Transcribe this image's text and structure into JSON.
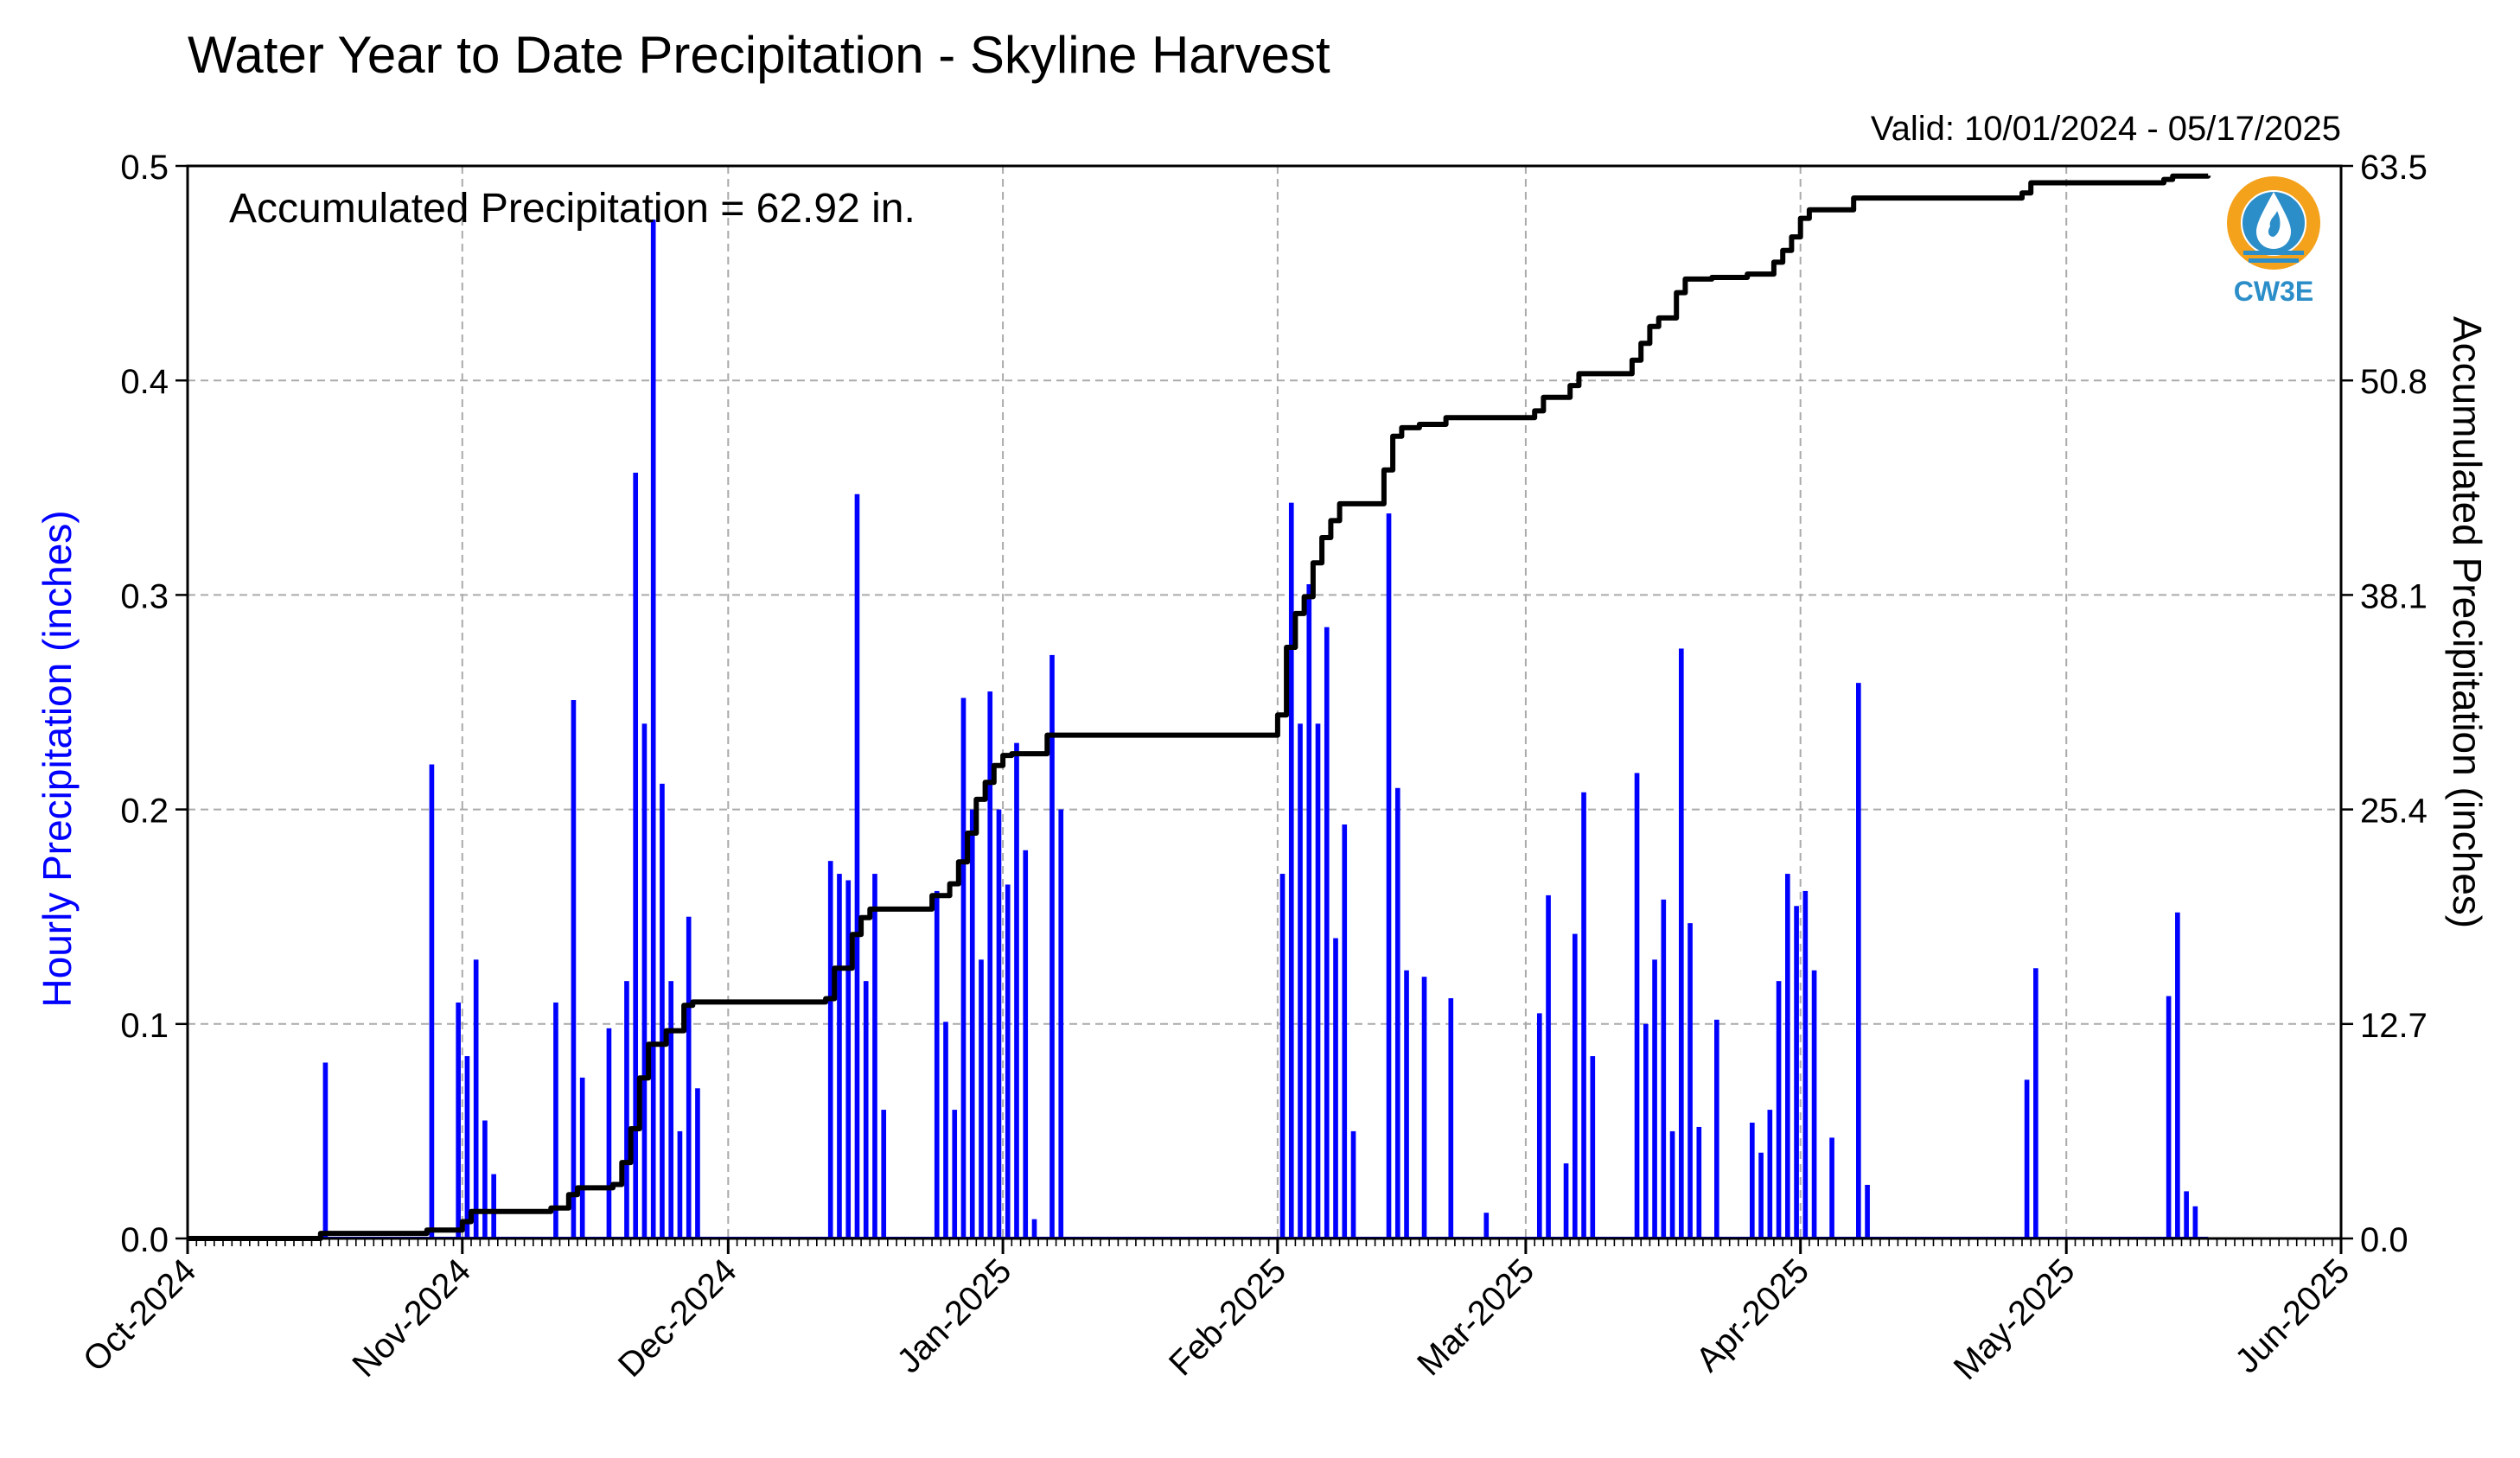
{
  "chart_data": {
    "type": "bar",
    "title": "Water Year to Date Precipitation - Skyline Harvest",
    "subtitle": "Valid: 10/01/2024 - 05/17/2025",
    "annotation": "Accumulated Precipitation = 62.92 in.",
    "logo_text": "CW3E",
    "xlabel": "",
    "ylabel": "Hourly Precipitation (inches)",
    "y2label": "Accumulated Precipitation (inches)",
    "x_axis": {
      "type": "date",
      "range": [
        "2024-10-01",
        "2025-06-01"
      ],
      "ticks": [
        {
          "date": "2024-10-01",
          "label": "Oct-2024"
        },
        {
          "date": "2024-11-01",
          "label": "Nov-2024"
        },
        {
          "date": "2024-12-01",
          "label": "Dec-2024"
        },
        {
          "date": "2025-01-01",
          "label": "Jan-2025"
        },
        {
          "date": "2025-02-01",
          "label": "Feb-2025"
        },
        {
          "date": "2025-03-01",
          "label": "Mar-2025"
        },
        {
          "date": "2025-04-01",
          "label": "Apr-2025"
        },
        {
          "date": "2025-05-01",
          "label": "May-2025"
        },
        {
          "date": "2025-06-01",
          "label": "Jun-2025"
        }
      ]
    },
    "ylim": [
      0,
      0.5
    ],
    "yticks": [
      "0.0",
      "0.1",
      "0.2",
      "0.3",
      "0.4",
      "0.5"
    ],
    "y2lim": [
      0,
      63.5
    ],
    "y2ticks": [
      "0.0",
      "12.7",
      "25.4",
      "38.1",
      "50.8",
      "63.5"
    ],
    "grid": true,
    "colors": {
      "hourly": "#0000ff",
      "accumulated": "#000000",
      "ylabel": "#0000ff",
      "grid": "#aaaaaa",
      "logo_orange": "#f4a21c",
      "logo_blue": "#2c8ec9"
    },
    "series": [
      {
        "kind": "bar",
        "axis": "left",
        "points": [
          [
            "2024-10-16",
            0.082
          ],
          [
            "2024-10-28",
            0.221
          ],
          [
            "2024-10-31",
            0.11
          ],
          [
            "2024-11-01",
            0.085
          ],
          [
            "2024-11-02",
            0.13
          ],
          [
            "2024-11-03",
            0.055
          ],
          [
            "2024-11-04",
            0.03
          ],
          [
            "2024-11-11",
            0.11
          ],
          [
            "2024-11-13",
            0.251
          ],
          [
            "2024-11-14",
            0.075
          ],
          [
            "2024-11-17",
            0.098
          ],
          [
            "2024-11-19",
            0.12
          ],
          [
            "2024-11-20",
            0.357
          ],
          [
            "2024-11-21",
            0.24
          ],
          [
            "2024-11-22",
            0.475
          ],
          [
            "2024-11-23",
            0.212
          ],
          [
            "2024-11-24",
            0.12
          ],
          [
            "2024-11-25",
            0.05
          ],
          [
            "2024-11-26",
            0.15
          ],
          [
            "2024-11-27",
            0.07
          ],
          [
            "2024-12-12",
            0.176
          ],
          [
            "2024-12-13",
            0.17
          ],
          [
            "2024-12-14",
            0.167
          ],
          [
            "2024-12-15",
            0.347
          ],
          [
            "2024-12-16",
            0.12
          ],
          [
            "2024-12-17",
            0.17
          ],
          [
            "2024-12-18",
            0.06
          ],
          [
            "2024-12-24",
            0.162
          ],
          [
            "2024-12-25",
            0.101
          ],
          [
            "2024-12-26",
            0.06
          ],
          [
            "2024-12-27",
            0.252
          ],
          [
            "2024-12-28",
            0.2
          ],
          [
            "2024-12-29",
            0.13
          ],
          [
            "2024-12-30",
            0.255
          ],
          [
            "2024-12-31",
            0.2
          ],
          [
            "2025-01-01",
            0.165
          ],
          [
            "2025-01-02",
            0.231
          ],
          [
            "2025-01-03",
            0.181
          ],
          [
            "2025-01-04",
            0.009
          ],
          [
            "2025-01-06",
            0.272
          ],
          [
            "2025-01-07",
            0.2
          ],
          [
            "2025-02-01",
            0.17
          ],
          [
            "2025-02-02",
            0.343
          ],
          [
            "2025-02-03",
            0.24
          ],
          [
            "2025-02-04",
            0.305
          ],
          [
            "2025-02-05",
            0.24
          ],
          [
            "2025-02-06",
            0.285
          ],
          [
            "2025-02-07",
            0.14
          ],
          [
            "2025-02-08",
            0.193
          ],
          [
            "2025-02-09",
            0.05
          ],
          [
            "2025-02-13",
            0.338
          ],
          [
            "2025-02-14",
            0.21
          ],
          [
            "2025-02-15",
            0.125
          ],
          [
            "2025-02-17",
            0.122
          ],
          [
            "2025-02-20",
            0.112
          ],
          [
            "2025-02-24",
            0.012
          ],
          [
            "2025-03-02",
            0.105
          ],
          [
            "2025-03-03",
            0.16
          ],
          [
            "2025-03-05",
            0.035
          ],
          [
            "2025-03-06",
            0.142
          ],
          [
            "2025-03-07",
            0.208
          ],
          [
            "2025-03-08",
            0.085
          ],
          [
            "2025-03-13",
            0.217
          ],
          [
            "2025-03-14",
            0.1
          ],
          [
            "2025-03-15",
            0.13
          ],
          [
            "2025-03-16",
            0.158
          ],
          [
            "2025-03-17",
            0.05
          ],
          [
            "2025-03-18",
            0.275
          ],
          [
            "2025-03-19",
            0.147
          ],
          [
            "2025-03-20",
            0.052
          ],
          [
            "2025-03-22",
            0.102
          ],
          [
            "2025-03-26",
            0.054
          ],
          [
            "2025-03-27",
            0.04
          ],
          [
            "2025-03-28",
            0.06
          ],
          [
            "2025-03-29",
            0.12
          ],
          [
            "2025-03-30",
            0.17
          ],
          [
            "2025-03-31",
            0.155
          ],
          [
            "2025-04-01",
            0.162
          ],
          [
            "2025-04-02",
            0.125
          ],
          [
            "2025-04-04",
            0.047
          ],
          [
            "2025-04-07",
            0.259
          ],
          [
            "2025-04-08",
            0.025
          ],
          [
            "2025-04-26",
            0.074
          ],
          [
            "2025-04-27",
            0.126
          ],
          [
            "2025-05-12",
            0.113
          ],
          [
            "2025-05-13",
            0.152
          ],
          [
            "2025-05-14",
            0.022
          ],
          [
            "2025-05-15",
            0.015
          ]
        ]
      },
      {
        "kind": "step",
        "axis": "right",
        "points": [
          [
            "2024-10-01",
            0.0
          ],
          [
            "2024-10-16",
            0.3
          ],
          [
            "2024-10-28",
            0.5
          ],
          [
            "2024-11-01",
            1.0
          ],
          [
            "2024-11-02",
            1.6
          ],
          [
            "2024-11-11",
            1.8
          ],
          [
            "2024-11-13",
            2.6
          ],
          [
            "2024-11-14",
            3.0
          ],
          [
            "2024-11-18",
            3.2
          ],
          [
            "2024-11-19",
            4.5
          ],
          [
            "2024-11-20",
            6.5
          ],
          [
            "2024-11-21",
            9.5
          ],
          [
            "2024-11-22",
            11.5
          ],
          [
            "2024-11-24",
            12.3
          ],
          [
            "2024-11-26",
            13.8
          ],
          [
            "2024-11-27",
            14.0
          ],
          [
            "2024-12-12",
            14.2
          ],
          [
            "2024-12-13",
            16.0
          ],
          [
            "2024-12-15",
            18.0
          ],
          [
            "2024-12-16",
            19.0
          ],
          [
            "2024-12-17",
            19.5
          ],
          [
            "2024-12-24",
            20.3
          ],
          [
            "2024-12-26",
            21.0
          ],
          [
            "2024-12-27",
            22.3
          ],
          [
            "2024-12-28",
            24.0
          ],
          [
            "2024-12-29",
            26.0
          ],
          [
            "2024-12-30",
            27.0
          ],
          [
            "2024-12-31",
            28.0
          ],
          [
            "2025-01-01",
            28.6
          ],
          [
            "2025-01-02",
            28.7
          ],
          [
            "2025-01-06",
            29.8
          ],
          [
            "2025-02-01",
            31.0
          ],
          [
            "2025-02-02",
            35.0
          ],
          [
            "2025-02-03",
            37.0
          ],
          [
            "2025-02-04",
            38.0
          ],
          [
            "2025-02-05",
            40.0
          ],
          [
            "2025-02-06",
            41.5
          ],
          [
            "2025-02-07",
            42.5
          ],
          [
            "2025-02-08",
            43.5
          ],
          [
            "2025-02-13",
            45.5
          ],
          [
            "2025-02-14",
            47.5
          ],
          [
            "2025-02-15",
            48.0
          ],
          [
            "2025-02-17",
            48.2
          ],
          [
            "2025-02-20",
            48.6
          ],
          [
            "2025-03-02",
            49.0
          ],
          [
            "2025-03-03",
            49.8
          ],
          [
            "2025-03-06",
            50.5
          ],
          [
            "2025-03-07",
            51.2
          ],
          [
            "2025-03-13",
            52.0
          ],
          [
            "2025-03-14",
            53.0
          ],
          [
            "2025-03-15",
            54.0
          ],
          [
            "2025-03-16",
            54.5
          ],
          [
            "2025-03-18",
            56.0
          ],
          [
            "2025-03-19",
            56.8
          ],
          [
            "2025-03-22",
            56.9
          ],
          [
            "2025-03-26",
            57.1
          ],
          [
            "2025-03-29",
            57.8
          ],
          [
            "2025-03-30",
            58.5
          ],
          [
            "2025-03-31",
            59.3
          ],
          [
            "2025-04-01",
            60.4
          ],
          [
            "2025-04-02",
            60.9
          ],
          [
            "2025-04-07",
            61.6
          ],
          [
            "2025-04-26",
            61.9
          ],
          [
            "2025-04-27",
            62.5
          ],
          [
            "2025-05-12",
            62.7
          ],
          [
            "2025-05-13",
            62.9
          ],
          [
            "2025-05-17",
            62.92
          ]
        ]
      }
    ]
  }
}
